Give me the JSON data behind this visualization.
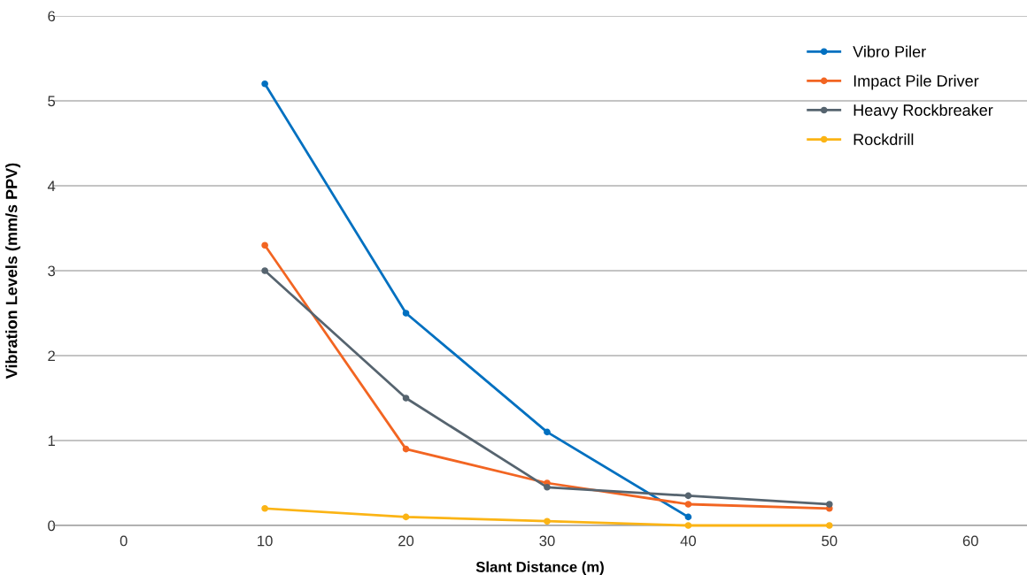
{
  "chart_data": {
    "type": "line",
    "xlabel": "Slant Distance (m)",
    "ylabel": "Vibration Levels (mm/s PPV)",
    "xlim": [
      -5,
      64
    ],
    "xticks": [
      0,
      10,
      20,
      30,
      40,
      50,
      60
    ],
    "ylim": [
      0,
      6
    ],
    "yticks": [
      0,
      1,
      2,
      3,
      4,
      5,
      6
    ],
    "grid": "y",
    "legend": "top right",
    "marker": "circle",
    "series": [
      {
        "name": "Vibro Piler",
        "color": "#0070c0",
        "x": [
          10,
          20,
          30,
          40
        ],
        "values": [
          5.2,
          2.5,
          1.1,
          0.1
        ]
      },
      {
        "name": "Impact Pile Driver",
        "color": "#f26522",
        "x": [
          10,
          20,
          30,
          40,
          50
        ],
        "values": [
          3.3,
          0.9,
          0.5,
          0.25,
          0.2
        ]
      },
      {
        "name": "Heavy Rockbreaker",
        "color": "#56646f",
        "x": [
          10,
          20,
          30,
          40,
          50
        ],
        "values": [
          3.0,
          1.5,
          0.45,
          0.35,
          0.25
        ]
      },
      {
        "name": "Rockdrill",
        "color": "#fbb415",
        "x": [
          10,
          20,
          30,
          40,
          50
        ],
        "values": [
          0.2,
          0.1,
          0.05,
          0,
          0
        ]
      }
    ]
  }
}
